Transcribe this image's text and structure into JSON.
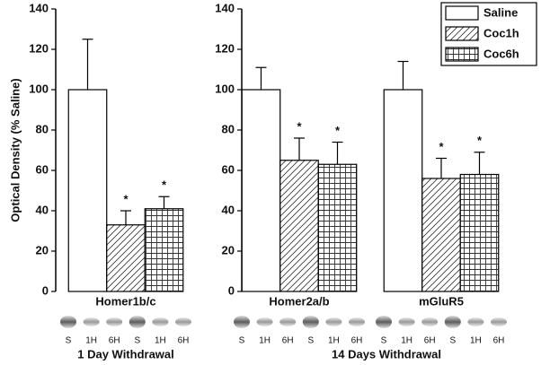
{
  "chart_data": [
    {
      "type": "bar",
      "ylabel": "Optical Density (% Saline)",
      "xlabel": "1 Day Withdrawal",
      "categories": [
        "Homer1b/c"
      ],
      "lanes": [
        [
          "S",
          "1H",
          "6H",
          "S",
          "1H",
          "6H"
        ]
      ],
      "ylim": [
        0,
        140
      ],
      "yticks": [
        0,
        20,
        40,
        60,
        80,
        100,
        120,
        140
      ],
      "series": [
        {
          "name": "Saline",
          "color": "#ffffff",
          "pattern": "none",
          "values": [
            100
          ],
          "errors": [
            25
          ]
        },
        {
          "name": "Coc1h",
          "color": "#ffffff",
          "pattern": "hatch",
          "values": [
            33
          ],
          "errors": [
            7
          ],
          "significance": [
            "*"
          ]
        },
        {
          "name": "Coc6h",
          "color": "#ffffff",
          "pattern": "grid",
          "values": [
            41
          ],
          "errors": [
            6
          ],
          "significance": [
            "*"
          ]
        }
      ]
    },
    {
      "type": "bar",
      "xlabel": "14 Days Withdrawal",
      "categories": [
        "Homer2a/b",
        "mGluR5"
      ],
      "lanes": [
        [
          "S",
          "1H",
          "6H",
          "S",
          "1H",
          "6H"
        ],
        [
          "S",
          "1H",
          "6H",
          "S",
          "1H",
          "6H"
        ]
      ],
      "ylim": [
        0,
        140
      ],
      "yticks": [
        0,
        20,
        40,
        60,
        80,
        100,
        120,
        140
      ],
      "legend": "upper right",
      "series": [
        {
          "name": "Saline",
          "color": "#ffffff",
          "pattern": "none",
          "values": [
            100,
            100
          ],
          "errors": [
            11,
            14
          ]
        },
        {
          "name": "Coc1h",
          "color": "#ffffff",
          "pattern": "hatch",
          "values": [
            65,
            56
          ],
          "errors": [
            11,
            10
          ],
          "significance": [
            "*",
            "*"
          ]
        },
        {
          "name": "Coc6h",
          "color": "#ffffff",
          "pattern": "grid",
          "values": [
            63,
            58
          ],
          "errors": [
            11,
            11
          ],
          "significance": [
            "*",
            "*"
          ]
        }
      ]
    }
  ]
}
